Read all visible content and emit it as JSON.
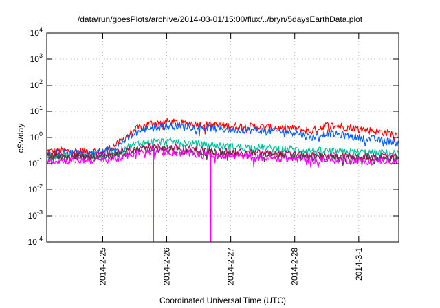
{
  "chart_data": {
    "type": "line",
    "title": "/data/run/goesPlots/archive/2014-03-01/15:00/flux/../bryn/5daysEarthData.plot",
    "xlabel": "Coordinated Universal Time (UTC)",
    "ylabel": "cSv/day",
    "yscale": "log",
    "ylim": [
      0.0001,
      10000
    ],
    "xlim": [
      "2014-02-24 03:00",
      "2014-03-01 15:00"
    ],
    "grid": true,
    "legend": "none",
    "y_ticks": [
      {
        "base": "10",
        "exp": "-4",
        "value": 0.0001
      },
      {
        "base": "10",
        "exp": "-3",
        "value": 0.001
      },
      {
        "base": "10",
        "exp": "-2",
        "value": 0.01
      },
      {
        "base": "10",
        "exp": "-1",
        "value": 0.1
      },
      {
        "base": "10",
        "exp": "0",
        "value": 1
      },
      {
        "base": "10",
        "exp": "1",
        "value": 10
      },
      {
        "base": "10",
        "exp": "2",
        "value": 100
      },
      {
        "base": "10",
        "exp": "3",
        "value": 1000
      },
      {
        "base": "10",
        "exp": "4",
        "value": 10000
      }
    ],
    "x_ticks": [
      {
        "label": "2014-2-25",
        "value": "2014-02-25 00:00"
      },
      {
        "label": "2014-2-26",
        "value": "2014-02-26 00:00"
      },
      {
        "label": "2014-2-27",
        "value": "2014-02-27 00:00"
      },
      {
        "label": "2014-2-28",
        "value": "2014-02-28 00:00"
      },
      {
        "label": "2014-3-1",
        "value": "2014-03-01 00:00"
      }
    ],
    "x": [
      "2014-02-24 03:00",
      "2014-02-24 12:00",
      "2014-02-25 00:00",
      "2014-02-25 06:00",
      "2014-02-25 12:00",
      "2014-02-25 18:00",
      "2014-02-26 00:00",
      "2014-02-26 12:00",
      "2014-02-27 00:00",
      "2014-02-27 12:00",
      "2014-02-28 00:00",
      "2014-02-28 06:00",
      "2014-02-28 12:00",
      "2014-03-01 00:00",
      "2014-03-01 15:00"
    ],
    "series": [
      {
        "color": "#ff0000",
        "values": [
          0.3,
          0.3,
          0.3,
          0.6,
          2.0,
          3.5,
          4.0,
          3.2,
          2.8,
          2.5,
          2.2,
          1.7,
          3.0,
          2.2,
          1.3
        ]
      },
      {
        "color": "#0060ff",
        "values": [
          0.25,
          0.25,
          0.27,
          0.5,
          1.5,
          2.5,
          2.8,
          2.5,
          2.0,
          1.8,
          1.6,
          1.0,
          1.5,
          1.0,
          0.65
        ]
      },
      {
        "color": "#00c0a0",
        "values": [
          0.2,
          0.2,
          0.2,
          0.3,
          0.55,
          0.7,
          0.7,
          0.55,
          0.45,
          0.4,
          0.35,
          0.32,
          0.3,
          0.27,
          0.25
        ]
      },
      {
        "color": "#c00060",
        "values": [
          0.2,
          0.2,
          0.2,
          0.25,
          0.38,
          0.45,
          0.42,
          0.33,
          0.28,
          0.25,
          0.22,
          0.2,
          0.2,
          0.18,
          0.17
        ]
      },
      {
        "color": "#404040",
        "values": [
          0.18,
          0.18,
          0.18,
          0.22,
          0.32,
          0.38,
          0.35,
          0.28,
          0.24,
          0.21,
          0.19,
          0.18,
          0.17,
          0.16,
          0.15
        ]
      },
      {
        "color": "#ff00ff",
        "values": [
          0.13,
          0.13,
          0.14,
          0.16,
          0.25,
          0.3,
          0.28,
          0.22,
          0.2,
          0.17,
          0.15,
          0.14,
          0.14,
          0.13,
          0.13
        ]
      }
    ],
    "dropouts": [
      {
        "x": "2014-02-25 19:00",
        "color": "#ff00ff"
      },
      {
        "x": "2014-02-26 16:30",
        "color": "#ff00ff"
      }
    ]
  }
}
